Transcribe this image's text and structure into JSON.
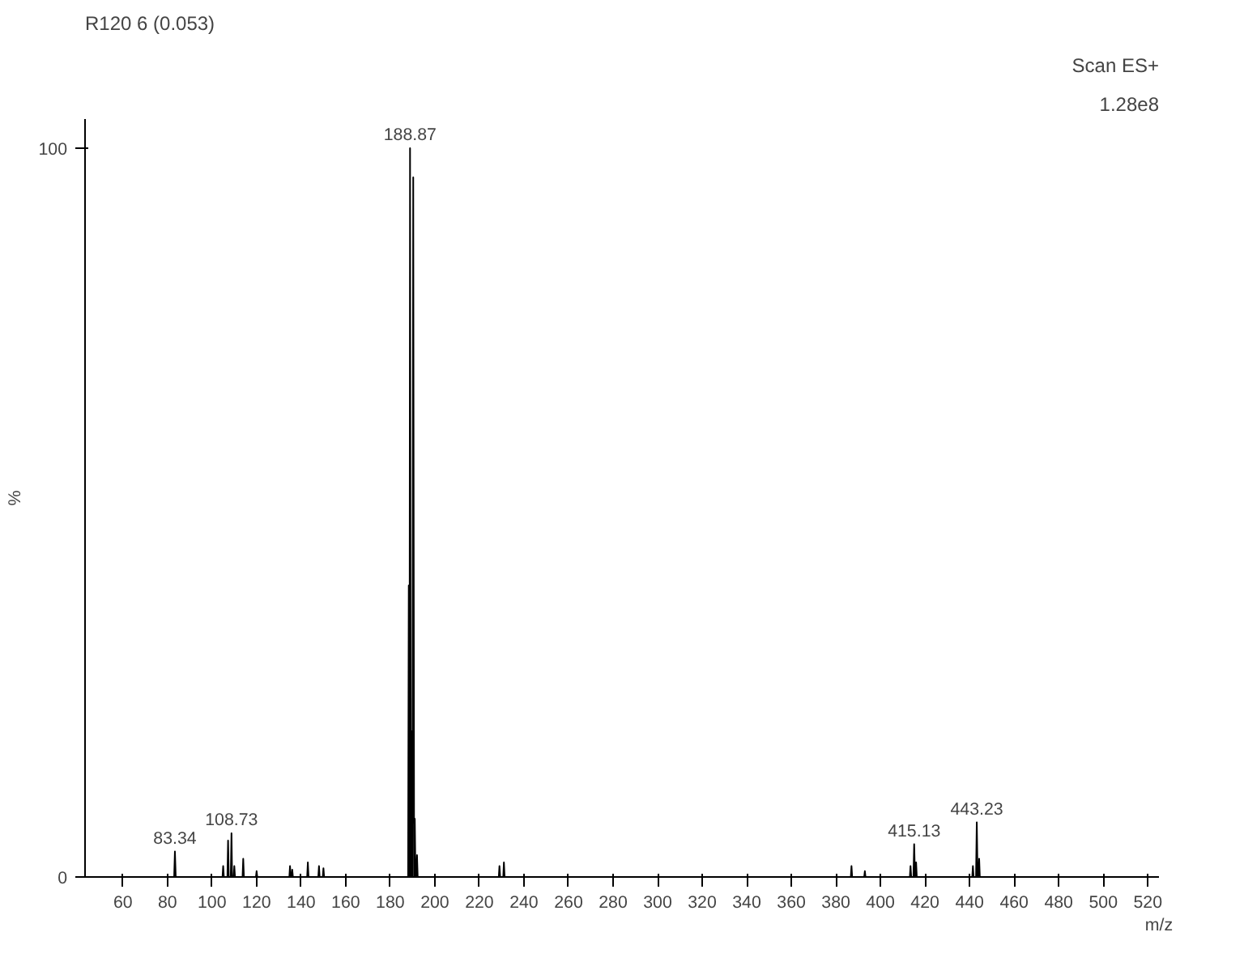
{
  "chart_data": {
    "type": "line",
    "title": "R120 6 (0.053)",
    "subtitle": "Scan ES+",
    "annotations": [
      "1.28e8",
      {
        "text": "83.34",
        "x": 83.34,
        "y": 3.5
      },
      {
        "text": "108.73",
        "x": 108.73,
        "y": 6
      },
      {
        "text": "188.87",
        "x": 188.87,
        "y": 100
      },
      {
        "text": "415.13",
        "x": 415.13,
        "y": 4.5
      },
      {
        "text": "443.23",
        "x": 443.23,
        "y": 7.5
      }
    ],
    "xlabel": "m/z",
    "ylabel": "%",
    "series": [
      {
        "color": "#000000",
        "x": [
          58,
          83.0,
          83.34,
          83.7,
          104.7,
          105,
          105.3,
          106.9,
          107.2,
          107.5,
          108.4,
          108.73,
          109.0,
          109.7,
          110,
          110.3,
          113.7,
          114,
          114.3,
          119.7,
          120,
          120.3,
          134.7,
          135,
          135.3,
          135.7,
          136,
          136.3,
          142.7,
          143,
          143.3,
          147.7,
          148,
          148.3,
          149.7,
          150,
          150.3,
          188.0,
          188.3,
          188.6,
          188.87,
          189.2,
          189.6,
          189.9,
          190.3,
          190.7,
          191,
          191.3,
          191.7,
          192,
          192.3,
          228.7,
          229,
          229.3,
          230.7,
          231,
          231.3,
          386.7,
          387,
          387.3,
          392.7,
          393,
          393.3,
          413.2,
          413.5,
          413.8,
          414.8,
          415.13,
          415.5,
          415.7,
          416,
          416.3,
          441.2,
          441.5,
          441.8,
          442.9,
          443.23,
          443.6,
          444.0,
          444.3,
          444.6,
          520
        ],
        "values": [
          0,
          0,
          3.5,
          0,
          0,
          1.5,
          0,
          0,
          5,
          0,
          0,
          6,
          0,
          0,
          1.5,
          0,
          0,
          2.5,
          0,
          0,
          0.8,
          0,
          0,
          1.5,
          0,
          0,
          1,
          0,
          0,
          2,
          0,
          0,
          1.5,
          0,
          0,
          1.2,
          0,
          0,
          40,
          0,
          100,
          0,
          20,
          0,
          96,
          0,
          8,
          0,
          0,
          3,
          0,
          0,
          1.5,
          0,
          0,
          2,
          0,
          0,
          1.5,
          0,
          0,
          0.8,
          0,
          0,
          1.5,
          0,
          0,
          4.5,
          0,
          0,
          2,
          0,
          0,
          1.5,
          0,
          0,
          7.5,
          0,
          0,
          2.5,
          0,
          0
        ]
      }
    ],
    "xlim": [
      43,
      525
    ],
    "ylim": [
      0,
      104
    ],
    "xticks": [
      60,
      80,
      100,
      120,
      140,
      160,
      180,
      200,
      220,
      240,
      260,
      280,
      300,
      320,
      340,
      360,
      380,
      400,
      420,
      440,
      460,
      480,
      500,
      520
    ],
    "yticks": [
      0,
      100
    ],
    "grid": false,
    "marker": "none",
    "line_style": "solid"
  }
}
